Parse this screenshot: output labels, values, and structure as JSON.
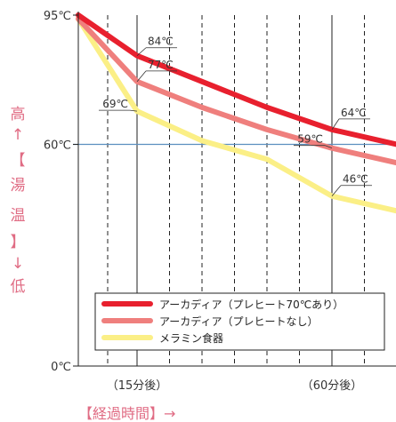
{
  "chart_data": {
    "type": "line",
    "y_tick_labels": [
      "95℃",
      "60℃",
      "0℃"
    ],
    "y_ticks": [
      95,
      60,
      0
    ],
    "ylim": [
      0,
      95
    ],
    "x_tick_labels": [
      "（15分後）",
      "（60分後）"
    ],
    "x_ticks": [
      15,
      60
    ],
    "xlabel": "【経過時間】→",
    "ylabel_chars": [
      "高",
      "↑",
      "【",
      "湯",
      "温",
      "】",
      "↓",
      "低"
    ],
    "series": [
      {
        "name": "アーカディア（プレヒート70℃あり）",
        "color": "#e8202e",
        "points": [
          [
            0,
            95
          ],
          [
            15,
            84
          ],
          [
            30,
            77
          ],
          [
            45,
            70
          ],
          [
            60,
            64
          ],
          [
            75,
            60
          ]
        ]
      },
      {
        "name": "アーカディア（プレヒートなし）",
        "color": "#ef7f7d",
        "points": [
          [
            0,
            94
          ],
          [
            15,
            77
          ],
          [
            30,
            70
          ],
          [
            45,
            64
          ],
          [
            60,
            59
          ],
          [
            75,
            55
          ]
        ]
      },
      {
        "name": "メラミン食器",
        "color": "#fbef86",
        "points": [
          [
            0,
            94
          ],
          [
            15,
            69
          ],
          [
            30,
            61
          ],
          [
            45,
            56
          ],
          [
            60,
            46
          ],
          [
            75,
            42
          ]
        ]
      }
    ],
    "annotations": [
      {
        "text": "84℃",
        "x": 15,
        "y": 84
      },
      {
        "text": "77℃",
        "x": 15,
        "y": 77
      },
      {
        "text": "69℃",
        "x": 15,
        "y": 69
      },
      {
        "text": "64℃",
        "x": 60,
        "y": 64
      },
      {
        "text": "59℃",
        "x": 60,
        "y": 59
      },
      {
        "text": "46℃",
        "x": 60,
        "y": 46
      }
    ],
    "reference_line": 60,
    "grid": true,
    "legend_position": "bottom-center"
  }
}
